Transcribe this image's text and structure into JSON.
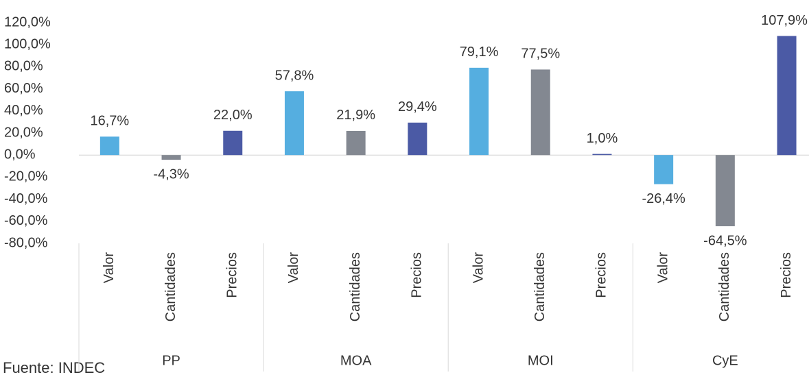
{
  "chart_data": {
    "type": "bar",
    "groups": [
      "PP",
      "MOA",
      "MOI",
      "CyE"
    ],
    "categories": [
      "Valor",
      "Cantidades",
      "Precios",
      "Valor",
      "Cantidades",
      "Precios",
      "Valor",
      "Cantidades",
      "Precios",
      "Valor",
      "Cantidades",
      "Precios"
    ],
    "values": [
      16.7,
      -4.3,
      22.0,
      57.8,
      21.9,
      29.4,
      79.1,
      77.5,
      1.0,
      -26.4,
      -64.5,
      107.9
    ],
    "value_labels": [
      "16,7%",
      "-4,3%",
      "22,0%",
      "57,8%",
      "21,9%",
      "29,4%",
      "79,1%",
      "77,5%",
      "1,0%",
      "-26,4%",
      "-64,5%",
      "107,9%"
    ],
    "colors": [
      "#55aee0",
      "#838891",
      "#4b5aa5"
    ],
    "ylim": [
      -80,
      120
    ],
    "yticks": [
      {
        "value": 120,
        "label": "120,0%"
      },
      {
        "value": 100,
        "label": "100,0%"
      },
      {
        "value": 80,
        "label": "80,0%"
      },
      {
        "value": 60,
        "label": "60,0%"
      },
      {
        "value": 40,
        "label": "40,0%"
      },
      {
        "value": 20,
        "label": "20,0%"
      },
      {
        "value": 0,
        "label": "0,0%"
      },
      {
        "value": -20,
        "label": "-20,0%"
      },
      {
        "value": -40,
        "label": "-40,0%"
      },
      {
        "value": -60,
        "label": "-60,0%"
      },
      {
        "value": -80,
        "label": "-80,0%"
      }
    ],
    "source": "Fuente: INDEC"
  }
}
